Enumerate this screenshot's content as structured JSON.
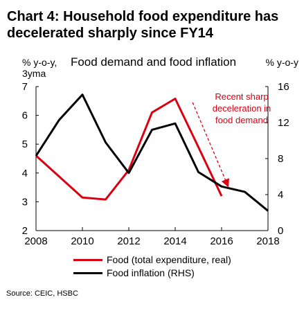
{
  "title_line1": "Chart 4: Household food expenditure has",
  "title_line2": "decelerated sharply since FY14",
  "subtitle": "Food demand and food inflation",
  "left_unit_line1": "% y-o-y,",
  "left_unit_line2": "3yma",
  "right_unit": "% y-o-y",
  "annotation_line1": "Recent sharp",
  "annotation_line2": "deceleration in",
  "annotation_line3": "food demand",
  "source": "Source: CEIC, HSBC",
  "colors": {
    "food": "#db0011",
    "inflation": "#000000",
    "annotation": "#db0011"
  },
  "chart_data": {
    "type": "line",
    "x_ticks": [
      "2008",
      "2010",
      "2012",
      "2014",
      "2016",
      "2018"
    ],
    "xlim": [
      2008,
      2018
    ],
    "ylim_left": [
      2,
      7
    ],
    "yticks_left": [
      "2",
      "3",
      "4",
      "5",
      "6",
      "7"
    ],
    "ylim_right": [
      0,
      16
    ],
    "yticks_right": [
      "0",
      "4",
      "8",
      "12",
      "16"
    ],
    "series": [
      {
        "name": "Food (total expenditure, real)",
        "axis": "left",
        "color": "#db0011",
        "x": [
          2008,
          2010,
          2011,
          2012,
          2013,
          2014,
          2015,
          2016
        ],
        "y": [
          4.6,
          3.15,
          3.08,
          4.1,
          6.1,
          6.58,
          4.9,
          3.2
        ]
      },
      {
        "name": "Food inflation (RHS)",
        "axis": "right",
        "color": "#000000",
        "x": [
          2008,
          2009,
          2010,
          2011,
          2012,
          2013,
          2014,
          2015,
          2016,
          2017,
          2018
        ],
        "y": [
          8.3,
          12.3,
          15.1,
          9.8,
          6.4,
          11.2,
          11.9,
          6.5,
          4.9,
          4.3,
          2.2
        ]
      }
    ],
    "annotation_arrow": {
      "from": [
        2014.75,
        6.45
      ],
      "to": [
        2016.3,
        3.5
      ]
    }
  }
}
